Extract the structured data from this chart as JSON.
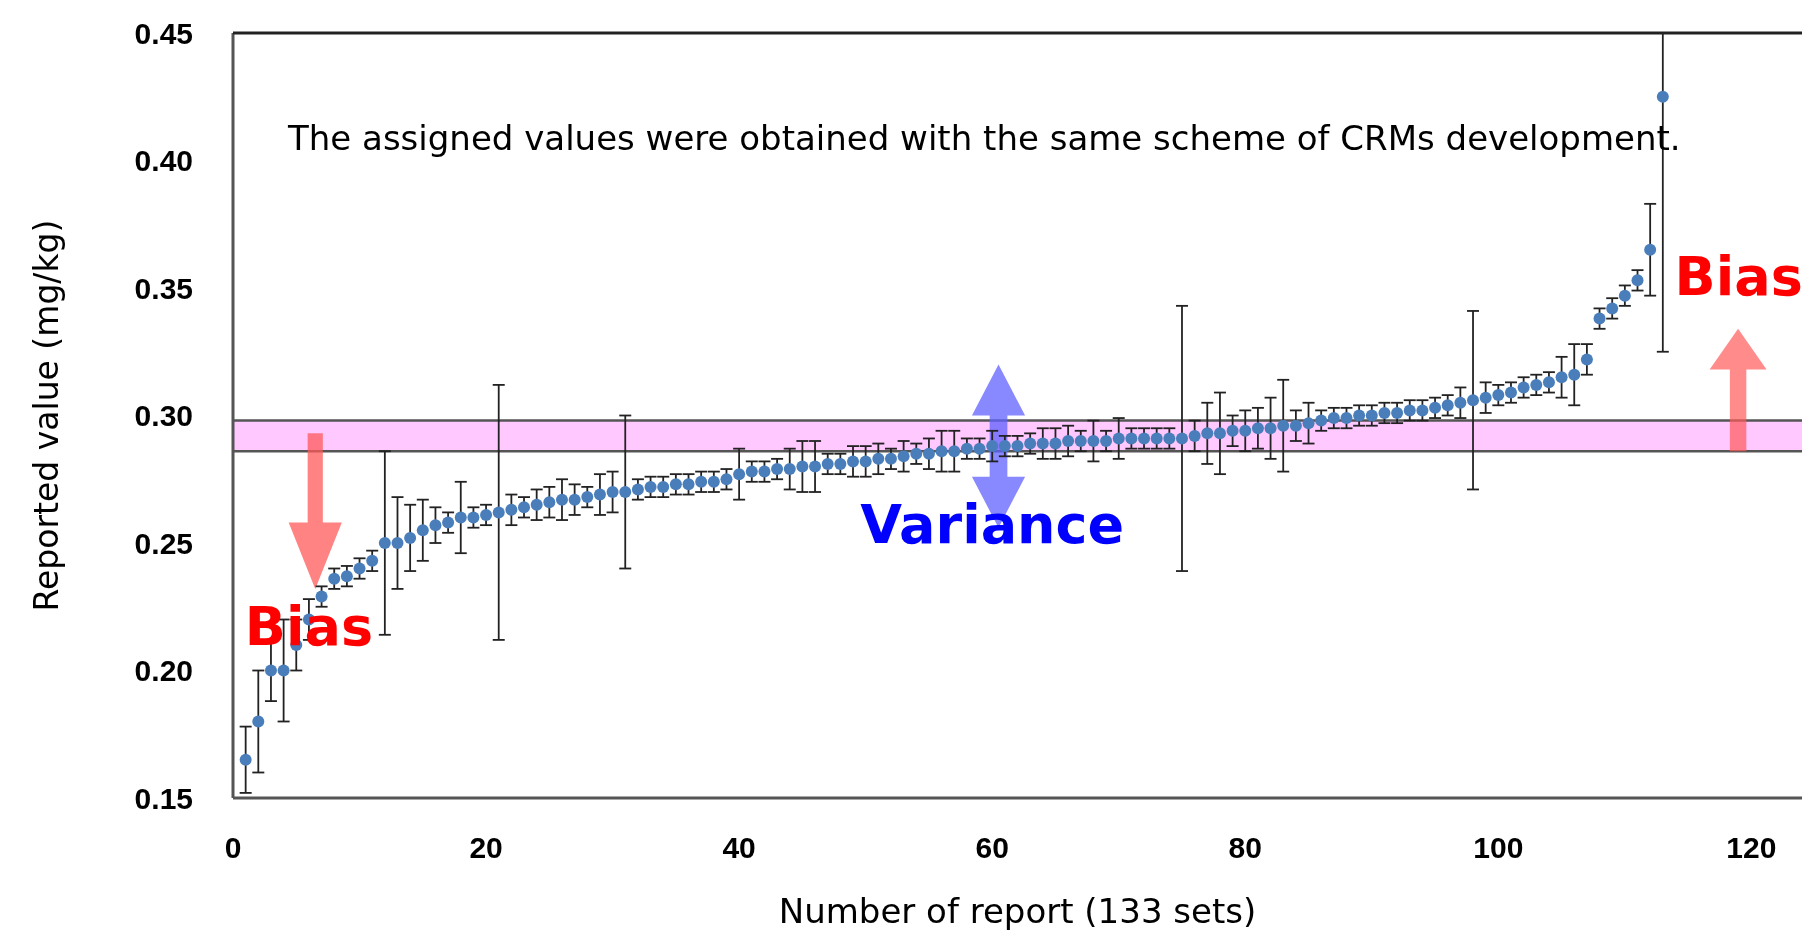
{
  "chart_data": {
    "type": "scatter",
    "xlabel": "Number of report (133 sets)",
    "ylabel": "Reported value (mg/kg)",
    "x": [
      1,
      2,
      3,
      4,
      5,
      6,
      7,
      8,
      9,
      10,
      11,
      12,
      13,
      14,
      15,
      16,
      17,
      18,
      19,
      20,
      21,
      22,
      23,
      24,
      25,
      26,
      27,
      28,
      29,
      30,
      31,
      32,
      33,
      34,
      35,
      36,
      37,
      38,
      39,
      40,
      41,
      42,
      43,
      44,
      45,
      46,
      47,
      48,
      49,
      50,
      51,
      52,
      53,
      54,
      55,
      56,
      57,
      58,
      59,
      60,
      61,
      62,
      63,
      64,
      65,
      66,
      67,
      68,
      69,
      70,
      71,
      72,
      73,
      74,
      75,
      76,
      77,
      78,
      79,
      80,
      81,
      82,
      83,
      84,
      85,
      86,
      87,
      88,
      89,
      90,
      91,
      92,
      93,
      94,
      95,
      96,
      97,
      98,
      99,
      100,
      101,
      102,
      103,
      104,
      105,
      106,
      107,
      108,
      109,
      110,
      111,
      112,
      113
    ],
    "series": [
      {
        "color": "#4a7ebb",
        "values": [
          0.165,
          0.18,
          0.2,
          0.2,
          0.21,
          0.22,
          0.229,
          0.236,
          0.237,
          0.24,
          0.243,
          0.25,
          0.25,
          0.252,
          0.255,
          0.257,
          0.258,
          0.26,
          0.26,
          0.261,
          0.262,
          0.263,
          0.264,
          0.265,
          0.266,
          0.267,
          0.267,
          0.268,
          0.269,
          0.27,
          0.27,
          0.271,
          0.272,
          0.272,
          0.273,
          0.273,
          0.274,
          0.274,
          0.275,
          0.277,
          0.278,
          0.278,
          0.279,
          0.279,
          0.28,
          0.28,
          0.281,
          0.281,
          0.282,
          0.282,
          0.283,
          0.283,
          0.284,
          0.285,
          0.285,
          0.286,
          0.286,
          0.287,
          0.287,
          0.288,
          0.288,
          0.288,
          0.289,
          0.289,
          0.289,
          0.29,
          0.29,
          0.29,
          0.29,
          0.291,
          0.291,
          0.291,
          0.291,
          0.291,
          0.291,
          0.292,
          0.293,
          0.293,
          0.294,
          0.294,
          0.295,
          0.295,
          0.296,
          0.296,
          0.297,
          0.298,
          0.299,
          0.299,
          0.3,
          0.3,
          0.301,
          0.301,
          0.302,
          0.302,
          0.303,
          0.304,
          0.305,
          0.306,
          0.307,
          0.308,
          0.309,
          0.311,
          0.312,
          0.313,
          0.315,
          0.316,
          0.322,
          0.338,
          0.342,
          0.347,
          0.353,
          0.365,
          0.425
        ],
        "errors": [
          0.013,
          0.02,
          0.012,
          0.02,
          0.01,
          0.008,
          0.004,
          0.004,
          0.004,
          0.004,
          0.004,
          0.036,
          0.018,
          0.013,
          0.012,
          0.007,
          0.004,
          0.014,
          0.004,
          0.004,
          0.05,
          0.006,
          0.004,
          0.006,
          0.006,
          0.008,
          0.006,
          0.004,
          0.008,
          0.008,
          0.03,
          0.004,
          0.004,
          0.004,
          0.004,
          0.004,
          0.004,
          0.004,
          0.004,
          0.01,
          0.004,
          0.004,
          0.004,
          0.008,
          0.01,
          0.01,
          0.004,
          0.004,
          0.006,
          0.006,
          0.006,
          0.004,
          0.006,
          0.004,
          0.006,
          0.008,
          0.008,
          0.004,
          0.004,
          0.006,
          0.004,
          0.004,
          0.004,
          0.006,
          0.006,
          0.006,
          0.004,
          0.008,
          0.004,
          0.008,
          0.004,
          0.004,
          0.004,
          0.004,
          0.052,
          0.006,
          0.012,
          0.016,
          0.006,
          0.008,
          0.008,
          0.012,
          0.018,
          0.006,
          0.008,
          0.004,
          0.004,
          0.004,
          0.004,
          0.004,
          0.004,
          0.004,
          0.004,
          0.004,
          0.004,
          0.004,
          0.006,
          0.035,
          0.006,
          0.004,
          0.004,
          0.004,
          0.004,
          0.004,
          0.008,
          0.012,
          0.006,
          0.004,
          0.004,
          0.004,
          0.004,
          0.018,
          [
            0.325,
            0.45
          ]
        ]
      }
    ],
    "xlim": [
      0,
      124
    ],
    "xticks": [
      0,
      20,
      40,
      60,
      80,
      100,
      120
    ],
    "ylim": [
      0.15,
      0.45
    ],
    "yticks": [
      {
        "value": 0.15,
        "label": "0.15"
      },
      {
        "value": 0.2,
        "label": "0.20"
      },
      {
        "value": 0.25,
        "label": "0.25"
      },
      {
        "value": 0.3,
        "label": "0.30"
      },
      {
        "value": 0.35,
        "label": "0.35"
      },
      {
        "value": 0.4,
        "label": "0.40"
      },
      {
        "value": 0.45,
        "label": "0.45"
      }
    ],
    "marker": "circle",
    "bands": [
      {
        "axis": "y",
        "from": 0.286,
        "to": 0.298,
        "color": "#ffc8ff"
      }
    ],
    "ref_lines": [
      {
        "axis": "y",
        "value": 0.286,
        "color": "#555555"
      },
      {
        "axis": "y",
        "value": 0.298,
        "color": "#555555"
      }
    ],
    "annotations": [
      "The assigned values were obtained with the same scheme of CRMs development.",
      "Bias",
      "Variance",
      {
        "text": "Bias",
        "x": 119,
        "y": 0.298
      }
    ]
  }
}
